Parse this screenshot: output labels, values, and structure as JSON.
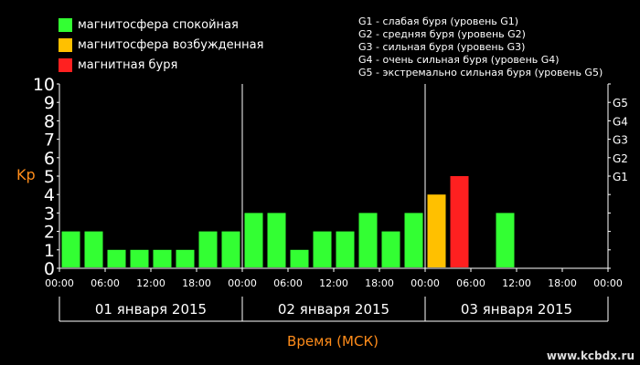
{
  "legend": [
    {
      "label": "магнитосфера спокойная",
      "color": "#33ff33"
    },
    {
      "label": "магнитосфера возбужденная",
      "color": "#ffc000"
    },
    {
      "label": "магнитная буря",
      "color": "#ff2020"
    }
  ],
  "g_legend": [
    "G1 - слабая буря (уровень G1)",
    "G2 - средняя буря (уровень G2)",
    "G3 - сильная буря (уровень G3)",
    "G4 - очень сильная буря (уровень G4)",
    "G5 - экстремально сильная буря (уровень G5)"
  ],
  "watermark": "www.kcbdx.ru",
  "colors": {
    "axis_title": "#ff8c1a",
    "background": "#000000",
    "text": "#ffffff"
  },
  "chart_data": {
    "type": "bar",
    "xlabel": "Время (МСК)",
    "ylabel": "Kp",
    "ylim": [
      0,
      10
    ],
    "y_ticks": [
      "0",
      "1",
      "2",
      "3",
      "4",
      "5",
      "6",
      "7",
      "8",
      "9",
      "10"
    ],
    "g_levels": [
      {
        "label": "G1",
        "kp": 5
      },
      {
        "label": "G2",
        "kp": 6
      },
      {
        "label": "G3",
        "kp": 7
      },
      {
        "label": "G4",
        "kp": 8
      },
      {
        "label": "G5",
        "kp": 9
      }
    ],
    "x_tick_labels": [
      "00:00",
      "06:00",
      "12:00",
      "18:00",
      "00:00",
      "06:00",
      "12:00",
      "18:00",
      "00:00",
      "06:00",
      "12:00",
      "18:00",
      "00:00"
    ],
    "days": [
      "01 января 2015",
      "02 января 2015",
      "03 января 2015"
    ],
    "values": [
      2,
      2,
      1,
      1,
      1,
      1,
      2,
      2,
      3,
      3,
      1,
      2,
      2,
      3,
      2,
      3,
      4,
      5,
      null,
      3,
      null,
      null,
      null,
      null
    ],
    "level_colors": {
      "quiet": "#33ff33",
      "active": "#ffc000",
      "storm": "#ff2020"
    },
    "grid": false
  }
}
